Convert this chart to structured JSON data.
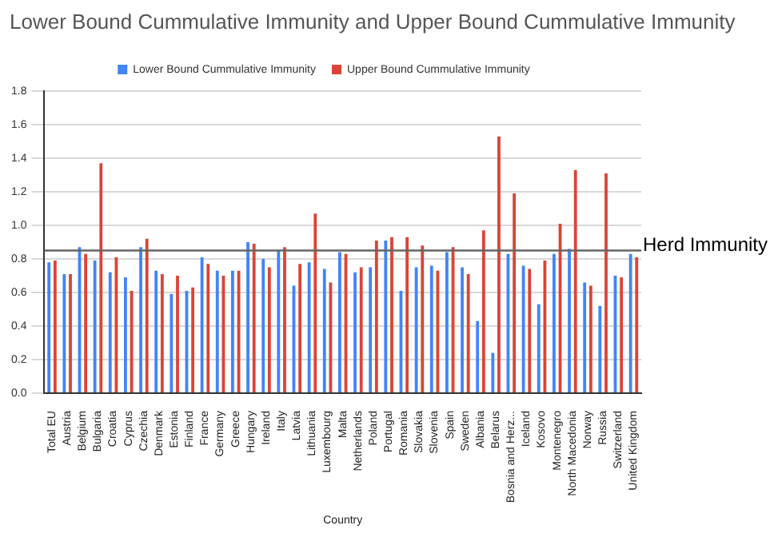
{
  "chart_data": {
    "type": "bar",
    "title": "Lower Bound Cummulative Immunity and Upper Bound Cummulative Immunity",
    "xlabel": "Country",
    "categories": [
      "Total EU",
      "Austria",
      "Belgium",
      "Bulgaria",
      "Croatia",
      "Cyprus",
      "Czechia",
      "Denmark",
      "Estonia",
      "Finland",
      "France",
      "Germany",
      "Greece",
      "Hungary",
      "Ireland",
      "Italy",
      "Latvia",
      "Lithuania",
      "Luxembourg",
      "Malta",
      "Netherlands",
      "Poland",
      "Portugal",
      "Romania",
      "Slovakia",
      "Slovenia",
      "Spain",
      "Sweden",
      "Albania",
      "Belarus",
      "Bosnia and Herz...",
      "Iceland",
      "Kosovo",
      "Montenegro",
      "North Macedonia",
      "Norway",
      "Russia",
      "Switzerland",
      "United Kingdom"
    ],
    "series": [
      {
        "name": "Lower Bound Cummulative Immunity",
        "color": "#4285f4",
        "values": [
          0.78,
          0.71,
          0.87,
          0.79,
          0.72,
          0.69,
          0.87,
          0.73,
          0.59,
          0.61,
          0.81,
          0.73,
          0.73,
          0.9,
          0.8,
          0.85,
          0.64,
          0.78,
          0.74,
          0.84,
          0.72,
          0.75,
          0.91,
          0.61,
          0.75,
          0.76,
          0.84,
          0.75,
          0.43,
          0.24,
          0.83,
          0.76,
          0.53,
          0.83,
          0.86,
          0.66,
          0.52,
          0.7,
          0.83
        ]
      },
      {
        "name": "Upper Bound Cummulative Immunity",
        "color": "#db4437",
        "values": [
          0.79,
          0.71,
          0.83,
          1.37,
          0.81,
          0.61,
          0.92,
          0.71,
          0.7,
          0.63,
          0.77,
          0.7,
          0.73,
          0.89,
          0.75,
          0.87,
          0.77,
          1.07,
          0.66,
          0.83,
          0.75,
          0.91,
          0.93,
          0.93,
          0.88,
          0.73,
          0.87,
          0.71,
          0.97,
          1.53,
          1.19,
          0.74,
          0.79,
          1.01,
          1.33,
          0.64,
          1.31,
          0.69,
          0.81
        ]
      }
    ],
    "ylim": [
      0,
      1.8
    ],
    "yticks": [
      {
        "value": 0,
        "label": "0.0"
      },
      {
        "value": 0.2,
        "label": "0.2"
      },
      {
        "value": 0.4,
        "label": "0.4"
      },
      {
        "value": 0.6,
        "label": "0.6"
      },
      {
        "value": 0.8,
        "label": "0.8"
      },
      {
        "value": 1,
        "label": "1.0"
      },
      {
        "value": 1.2,
        "label": "1.2"
      },
      {
        "value": 1.4,
        "label": "1.4"
      },
      {
        "value": 1.6,
        "label": "1.6"
      },
      {
        "value": 1.8,
        "label": "1.8"
      }
    ],
    "grid": "y",
    "legend": "top",
    "ref_lines": [
      {
        "axis": "y",
        "value": 0.85,
        "label": "Herd Immunity",
        "color": "#666666"
      }
    ]
  }
}
